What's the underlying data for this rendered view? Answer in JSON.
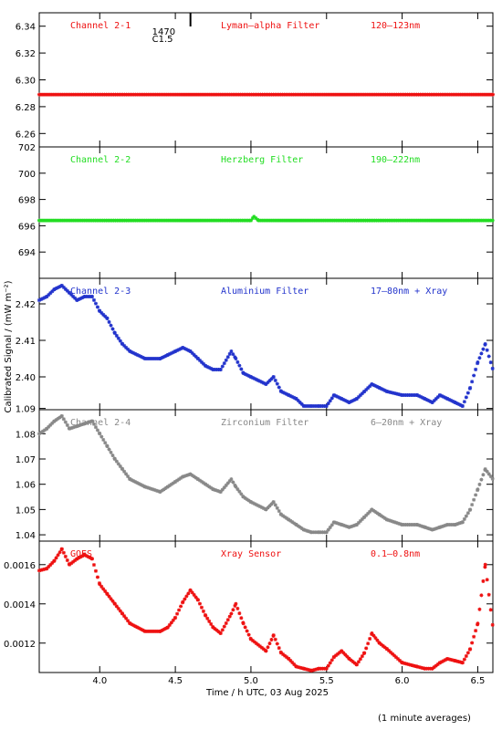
{
  "x_axis": {
    "label": "Time / h UTC, 03 Aug 2025",
    "range": [
      3.6,
      6.6
    ],
    "ticks": [
      "4.0",
      "4.5",
      "5.0",
      "5.5",
      "6.0",
      "6.5"
    ],
    "tick_values": [
      4.0,
      4.5,
      5.0,
      5.5,
      6.0,
      6.5
    ]
  },
  "y_axis_label": "Calibrated Signal / (mW m⁻²)",
  "footer": "(1 minute averages)",
  "marker_label_a": "1470",
  "marker_label_b": "C1.5",
  "marker_x": 4.6,
  "chart_data": [
    {
      "type": "scatter",
      "channel": "Channel 2-1",
      "filter": "Lyman–alpha Filter",
      "band": "120–123nm",
      "color": "#ee1111",
      "ylim": [
        6.25,
        6.35
      ],
      "yticks": [
        "6.26",
        "6.28",
        "6.30",
        "6.32",
        "6.34"
      ],
      "ytick_values": [
        6.26,
        6.28,
        6.3,
        6.32,
        6.34
      ],
      "x": [
        3.6,
        6.6
      ],
      "y": [
        6.289,
        6.289
      ]
    },
    {
      "type": "scatter",
      "channel": "Channel 2-2",
      "filter": "Herzberg Filter",
      "band": "190–222nm",
      "color": "#22dd22",
      "ylim": [
        692,
        702
      ],
      "yticks": [
        "694",
        "696",
        "698",
        "700",
        "702"
      ],
      "ytick_values": [
        694,
        696,
        698,
        700,
        702
      ],
      "x": [
        3.6,
        5.0,
        5.02,
        5.05,
        6.6
      ],
      "y": [
        696.4,
        696.4,
        696.7,
        696.4,
        696.4
      ]
    },
    {
      "type": "scatter",
      "channel": "Channel 2-3",
      "filter": "Aluminium Filter",
      "band": "17–80nm + Xray",
      "color": "#2233cc",
      "ylim": [
        2.391,
        2.427
      ],
      "yticks": [
        "2.40",
        "2.41",
        "2.42"
      ],
      "ytick_values": [
        2.4,
        2.41,
        2.42
      ],
      "x": [
        3.6,
        3.65,
        3.7,
        3.75,
        3.8,
        3.85,
        3.9,
        3.95,
        4.0,
        4.05,
        4.1,
        4.15,
        4.2,
        4.3,
        4.4,
        4.45,
        4.5,
        4.55,
        4.6,
        4.65,
        4.7,
        4.75,
        4.8,
        4.87,
        4.9,
        4.95,
        5.0,
        5.1,
        5.15,
        5.2,
        5.25,
        5.3,
        5.35,
        5.4,
        5.45,
        5.5,
        5.55,
        5.6,
        5.65,
        5.7,
        5.75,
        5.8,
        5.85,
        5.9,
        6.0,
        6.1,
        6.15,
        6.2,
        6.25,
        6.3,
        6.35,
        6.4,
        6.45,
        6.5,
        6.55,
        6.6
      ],
      "y": [
        2.421,
        2.422,
        2.424,
        2.425,
        2.423,
        2.421,
        2.422,
        2.422,
        2.418,
        2.416,
        2.412,
        2.409,
        2.407,
        2.405,
        2.405,
        2.406,
        2.407,
        2.408,
        2.407,
        2.405,
        2.403,
        2.402,
        2.402,
        2.407,
        2.405,
        2.401,
        2.4,
        2.398,
        2.4,
        2.396,
        2.395,
        2.394,
        2.392,
        2.392,
        2.392,
        2.392,
        2.395,
        2.394,
        2.393,
        2.394,
        2.396,
        2.398,
        2.397,
        2.396,
        2.395,
        2.395,
        2.394,
        2.393,
        2.395,
        2.394,
        2.393,
        2.392,
        2.397,
        2.404,
        2.409,
        2.402
      ]
    },
    {
      "type": "scatter",
      "channel": "Channel 2-4",
      "filter": "Zirconium Filter",
      "band": "6–20nm + Xray",
      "color": "#888888",
      "ylim": [
        1.0375,
        1.0895
      ],
      "yticks": [
        "1.04",
        "1.05",
        "1.06",
        "1.07",
        "1.08",
        "1.09"
      ],
      "ytick_values": [
        1.04,
        1.05,
        1.06,
        1.07,
        1.08,
        1.09
      ],
      "x": [
        3.6,
        3.65,
        3.7,
        3.75,
        3.8,
        3.85,
        3.9,
        3.95,
        4.0,
        4.05,
        4.1,
        4.15,
        4.2,
        4.3,
        4.4,
        4.45,
        4.5,
        4.55,
        4.6,
        4.65,
        4.7,
        4.75,
        4.8,
        4.87,
        4.9,
        4.95,
        5.0,
        5.1,
        5.15,
        5.2,
        5.25,
        5.3,
        5.35,
        5.4,
        5.45,
        5.5,
        5.55,
        5.6,
        5.65,
        5.7,
        5.75,
        5.8,
        5.85,
        5.9,
        6.0,
        6.1,
        6.15,
        6.2,
        6.25,
        6.3,
        6.35,
        6.4,
        6.45,
        6.5,
        6.55,
        6.6
      ],
      "y": [
        1.08,
        1.082,
        1.085,
        1.087,
        1.082,
        1.083,
        1.084,
        1.085,
        1.08,
        1.075,
        1.07,
        1.066,
        1.062,
        1.059,
        1.057,
        1.059,
        1.061,
        1.063,
        1.064,
        1.062,
        1.06,
        1.058,
        1.057,
        1.062,
        1.059,
        1.055,
        1.053,
        1.05,
        1.053,
        1.048,
        1.046,
        1.044,
        1.042,
        1.041,
        1.041,
        1.041,
        1.045,
        1.044,
        1.043,
        1.044,
        1.047,
        1.05,
        1.048,
        1.046,
        1.044,
        1.044,
        1.043,
        1.042,
        1.043,
        1.044,
        1.044,
        1.045,
        1.05,
        1.058,
        1.066,
        1.062
      ]
    },
    {
      "type": "scatter",
      "channel": "GOES",
      "filter": "Xray Sensor",
      "band": "0.1–0.8nm",
      "color": "#ee1111",
      "ylim": [
        0.00105,
        0.00172
      ],
      "yticks": [
        "0.0012",
        "0.0014",
        "0.0016"
      ],
      "ytick_values": [
        0.0012,
        0.0014,
        0.0016
      ],
      "x": [
        3.6,
        3.65,
        3.7,
        3.75,
        3.8,
        3.85,
        3.9,
        3.95,
        4.0,
        4.05,
        4.1,
        4.15,
        4.2,
        4.3,
        4.4,
        4.45,
        4.5,
        4.55,
        4.6,
        4.65,
        4.7,
        4.75,
        4.8,
        4.87,
        4.9,
        4.95,
        5.0,
        5.1,
        5.15,
        5.2,
        5.25,
        5.3,
        5.35,
        5.4,
        5.45,
        5.5,
        5.55,
        5.6,
        5.65,
        5.7,
        5.75,
        5.8,
        5.85,
        5.9,
        6.0,
        6.1,
        6.15,
        6.2,
        6.25,
        6.3,
        6.35,
        6.4,
        6.45,
        6.5,
        6.55,
        6.6
      ],
      "y": [
        0.00157,
        0.00158,
        0.00162,
        0.00168,
        0.0016,
        0.00163,
        0.00165,
        0.00163,
        0.0015,
        0.00145,
        0.0014,
        0.00135,
        0.0013,
        0.00126,
        0.00126,
        0.00128,
        0.00133,
        0.00141,
        0.00147,
        0.00142,
        0.00134,
        0.00128,
        0.00125,
        0.00135,
        0.0014,
        0.0013,
        0.00122,
        0.00116,
        0.00124,
        0.00115,
        0.00112,
        0.00108,
        0.00107,
        0.00106,
        0.00107,
        0.00107,
        0.00113,
        0.00116,
        0.00112,
        0.00109,
        0.00115,
        0.00125,
        0.0012,
        0.00117,
        0.0011,
        0.00108,
        0.00107,
        0.00107,
        0.0011,
        0.00112,
        0.00111,
        0.0011,
        0.00117,
        0.0013,
        0.0016,
        0.00128
      ]
    }
  ]
}
